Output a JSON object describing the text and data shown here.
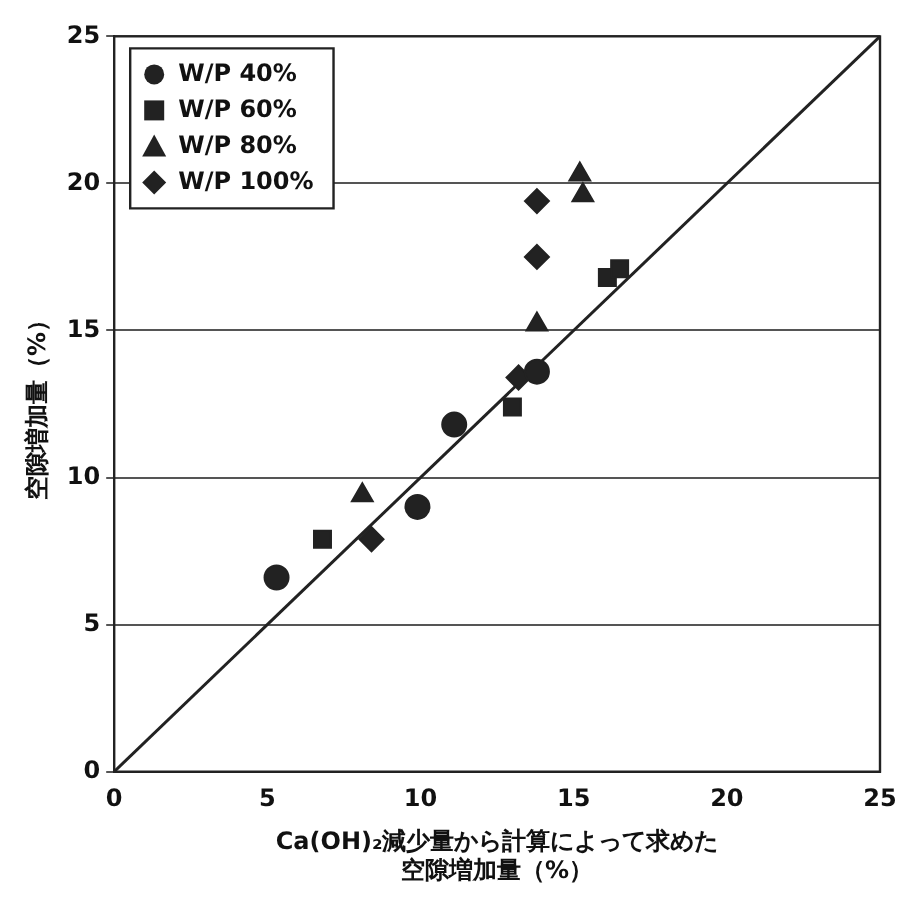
{
  "chart_data": {
    "type": "scatter",
    "xlabel": "Ca(OH)₂減少量から計算によって求めた空隙増加量（%）",
    "ylabel": "空隙増加量（%）",
    "xlim": [
      0,
      25
    ],
    "xticks": [
      0,
      5,
      10,
      15,
      20,
      25
    ],
    "ylim": [
      0,
      25
    ],
    "yticks": [
      0,
      5,
      10,
      15,
      20,
      25
    ],
    "grid": "y",
    "legend": "top left",
    "series": [
      {
        "name": "W/P 40%",
        "color": "#222222",
        "marker": "circle",
        "x": [
          5.3,
          9.9,
          11.1,
          13.8
        ],
        "values": [
          6.6,
          9.0,
          11.8,
          13.6
        ]
      },
      {
        "name": "W/P 60%",
        "color": "#222222",
        "marker": "square",
        "x": [
          6.8,
          13.0,
          16.1,
          16.5
        ],
        "values": [
          7.9,
          12.4,
          16.8,
          17.1
        ]
      },
      {
        "name": "W/P 80%",
        "color": "#222222",
        "marker": "triangle",
        "x": [
          8.1,
          13.8,
          15.2,
          15.3
        ],
        "values": [
          9.4,
          15.2,
          20.3,
          19.6
        ]
      },
      {
        "name": "W/P 100%",
        "color": "#222222",
        "marker": "diamond",
        "x": [
          8.4,
          13.2,
          13.8,
          13.8
        ],
        "values": [
          7.9,
          13.4,
          17.5,
          19.4
        ]
      },
      {
        "type": "line",
        "color": "#222222",
        "marker": "none",
        "x": [
          0,
          25
        ],
        "values": [
          0,
          25
        ]
      }
    ]
  }
}
